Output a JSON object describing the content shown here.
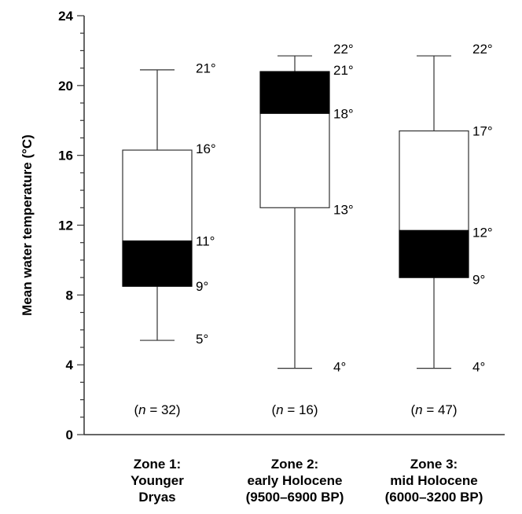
{
  "chart_data": {
    "type": "box",
    "title": "",
    "ylabel": "Mean water temperature (°C)",
    "xlabel": "",
    "ylim": [
      0,
      24
    ],
    "y_ticks": [
      "0",
      "4",
      "8",
      "12",
      "16",
      "20",
      "24"
    ],
    "y_tick_values": [
      0,
      4,
      8,
      12,
      16,
      20,
      24
    ],
    "grid": false,
    "categories": [
      {
        "label_lines": [
          "Zone 1:",
          "Younger",
          "Dryas"
        ],
        "n_label": "(n = 32)",
        "n_prefix": "(",
        "n_var": "n",
        "n_value": " = 32)",
        "min": 5.4,
        "q1": 8.5,
        "q3": 16.3,
        "max": 20.9,
        "filled_low": 8.5,
        "filled_high": 11.1,
        "annotations": [
          {
            "text": "21°",
            "value": 21
          },
          {
            "text": "16°",
            "value": 16.4
          },
          {
            "text": "11°",
            "value": 11.1
          },
          {
            "text": "9°",
            "value": 8.5
          },
          {
            "text": "5°",
            "value": 5.5
          }
        ]
      },
      {
        "label_lines": [
          "Zone 2:",
          "early Holocene",
          "(9500–6900 BP)"
        ],
        "n_label": "(n = 16)",
        "n_prefix": "(",
        "n_var": "n",
        "n_value": " = 16)",
        "min": 3.8,
        "q1": 13.0,
        "q3": 20.8,
        "max": 21.7,
        "filled_low": 18.4,
        "filled_high": 20.8,
        "annotations": [
          {
            "text": "22°",
            "value": 22.1
          },
          {
            "text": "21°",
            "value": 20.9
          },
          {
            "text": "18°",
            "value": 18.4
          },
          {
            "text": "13°",
            "value": 12.9
          },
          {
            "text": "4°",
            "value": 3.9
          }
        ]
      },
      {
        "label_lines": [
          "Zone 3:",
          "mid Holocene",
          "(6000–3200 BP)"
        ],
        "n_label": "(n = 47)",
        "n_prefix": "(",
        "n_var": "n",
        "n_value": " = 47)",
        "min": 3.8,
        "q1": 9.0,
        "q3": 17.4,
        "max": 21.7,
        "filled_low": 9.0,
        "filled_high": 11.7,
        "annotations": [
          {
            "text": "22°",
            "value": 22.1
          },
          {
            "text": "17°",
            "value": 17.4
          },
          {
            "text": "12°",
            "value": 11.6
          },
          {
            "text": "9°",
            "value": 8.9
          },
          {
            "text": "4°",
            "value": 3.9
          }
        ]
      }
    ],
    "colors": {
      "filled": "#000000",
      "box": "#ffffff",
      "line": "#333333"
    }
  }
}
